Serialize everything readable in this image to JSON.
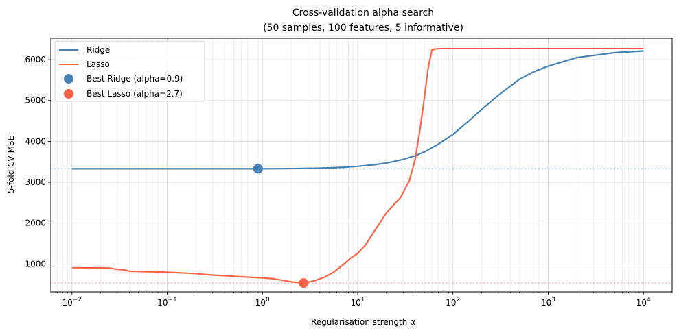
{
  "chart_data": {
    "type": "line",
    "title": "Cross-validation alpha search",
    "subtitle": "(50 samples, 100 features, 5 informative)",
    "xlabel": "Regularisation strength α",
    "ylabel": "5-fold CV MSE",
    "xscale": "log",
    "xlim": [
      0.006,
      20000
    ],
    "ylim": [
      320,
      6520
    ],
    "x_ticks": [
      0.01,
      0.1,
      1,
      10,
      100,
      1000,
      10000
    ],
    "x_tick_labels": [
      {
        "base": "10",
        "exp": "−2"
      },
      {
        "base": "10",
        "exp": "−1"
      },
      {
        "base": "10",
        "exp": "0"
      },
      {
        "base": "10",
        "exp": "1"
      },
      {
        "base": "10",
        "exp": "2"
      },
      {
        "base": "10",
        "exp": "3"
      },
      {
        "base": "10",
        "exp": "4"
      }
    ],
    "y_ticks": [
      1000,
      2000,
      3000,
      4000,
      5000,
      6000
    ],
    "y_tick_labels": [
      "1000",
      "2000",
      "3000",
      "4000",
      "5000",
      "6000"
    ],
    "grid": true,
    "legend_position": "top-left",
    "series": [
      {
        "name": "Ridge",
        "color": "#4682b4",
        "x": [
          0.01,
          0.03,
          0.1,
          0.3,
          1,
          2,
          4,
          7,
          10,
          15,
          20,
          30,
          40,
          50,
          70,
          100,
          150,
          200,
          300,
          500,
          700,
          1000,
          2000,
          5000,
          10000
        ],
        "y": [
          3330,
          3330,
          3330,
          3330,
          3330,
          3335,
          3345,
          3365,
          3390,
          3430,
          3470,
          3560,
          3650,
          3740,
          3930,
          4170,
          4520,
          4780,
          5130,
          5520,
          5700,
          5840,
          6050,
          6170,
          6210
        ]
      },
      {
        "name": "Lasso",
        "color": "#ff6347",
        "x": [
          0.01,
          0.012,
          0.015,
          0.02,
          0.025,
          0.03,
          0.035,
          0.04,
          0.05,
          0.07,
          0.1,
          0.15,
          0.2,
          0.3,
          0.4,
          0.5,
          0.7,
          1,
          1.3,
          1.7,
          2,
          2.7,
          3.5,
          4.5,
          5.5,
          7,
          8.5,
          10,
          12,
          14,
          17,
          20,
          25,
          28,
          30,
          35,
          40,
          45,
          50,
          55,
          60,
          65,
          75,
          100,
          300,
          1000,
          10000
        ],
        "y": [
          910,
          910,
          905,
          910,
          900,
          870,
          860,
          825,
          815,
          810,
          800,
          780,
          765,
          730,
          715,
          700,
          680,
          660,
          640,
          595,
          565,
          535,
          590,
          680,
          790,
          980,
          1150,
          1260,
          1460,
          1700,
          2000,
          2250,
          2500,
          2620,
          2750,
          3050,
          3550,
          4280,
          5050,
          5800,
          6230,
          6260,
          6270,
          6270,
          6270,
          6270,
          6270
        ]
      }
    ],
    "best_points": [
      {
        "name": "Best Ridge (alpha=0.9)",
        "x": 0.9,
        "y": 3330,
        "color": "#4682b4"
      },
      {
        "name": "Best Lasso (alpha=2.7)",
        "x": 2.7,
        "y": 535,
        "color": "#ff6347"
      }
    ],
    "reference_lines": [
      {
        "y": 3330,
        "color": "#9ec5e0"
      },
      {
        "y": 535,
        "color": "#f4b3b3"
      }
    ]
  }
}
